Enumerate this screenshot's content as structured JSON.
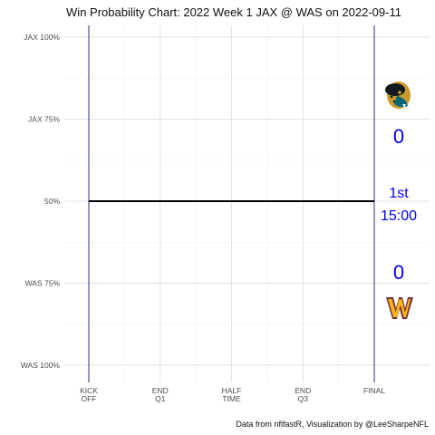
{
  "chart_data": {
    "type": "line",
    "title": "Win Probability Chart: 2022 Week 1 JAX @ WAS on 2022-09-11",
    "caption": "Data from nflfastR, Visualization by @LeeSharpeNFL",
    "xlabel": "",
    "ylabel": "",
    "x_ticks": [
      {
        "value": 0,
        "label_lines": [
          "KICK",
          "OFF"
        ]
      },
      {
        "value": 900,
        "label_lines": [
          "END",
          "Q1"
        ]
      },
      {
        "value": 1800,
        "label_lines": [
          "HALF",
          "TIME"
        ]
      },
      {
        "value": 2700,
        "label_lines": [
          "END",
          "Q3"
        ]
      },
      {
        "value": 3600,
        "label_lines": [
          "FINAL"
        ]
      }
    ],
    "y_ticks": [
      {
        "value": 1.0,
        "label": "JAX 100%"
      },
      {
        "value": 0.75,
        "label": "JAX 75%"
      },
      {
        "value": 0.5,
        "label": "50%"
      },
      {
        "value": 0.25,
        "label": "WAS 75%"
      },
      {
        "value": 0.0,
        "label": "WAS 100%"
      }
    ],
    "xlim": [
      0,
      3600
    ],
    "ylim": [
      0,
      1
    ],
    "grid": true,
    "series": [
      {
        "x": [
          0,
          3600
        ],
        "y": [
          0.5,
          0.5
        ],
        "color": "#000000"
      }
    ],
    "vertical_lines": [
      {
        "x": 0,
        "color": "#1a1a7a"
      },
      {
        "x": 3600,
        "color": "#1a1a7a"
      }
    ],
    "score_overlay": {
      "away_score": "0",
      "home_score": "0",
      "quarter": "1st",
      "clock": "15:00",
      "text_color": "#0000ee",
      "away_logo": "jaguars-logo",
      "home_logo": "commanders-logo"
    }
  }
}
